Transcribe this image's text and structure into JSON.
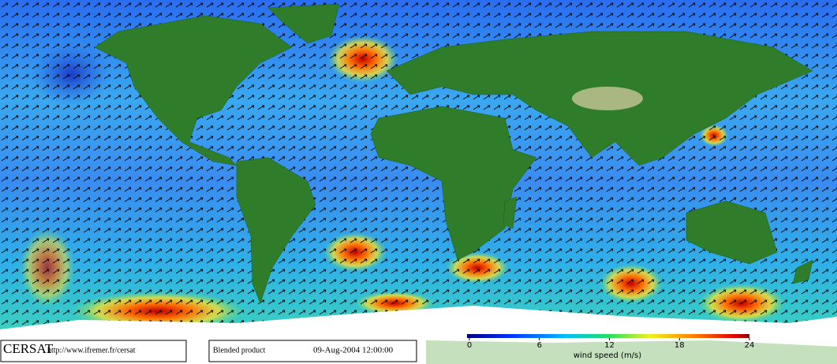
{
  "header": {
    "logo": "CERSAT",
    "url": "http://www.ifremer.fr/cersat",
    "product": "Blended product",
    "date": "09-Aug-2004 12:00:00"
  },
  "colorbar": {
    "label": "wind speed (m/s)",
    "lim": [
      0,
      24
    ],
    "ticks": [
      0,
      6,
      12,
      18,
      24
    ]
  }
}
